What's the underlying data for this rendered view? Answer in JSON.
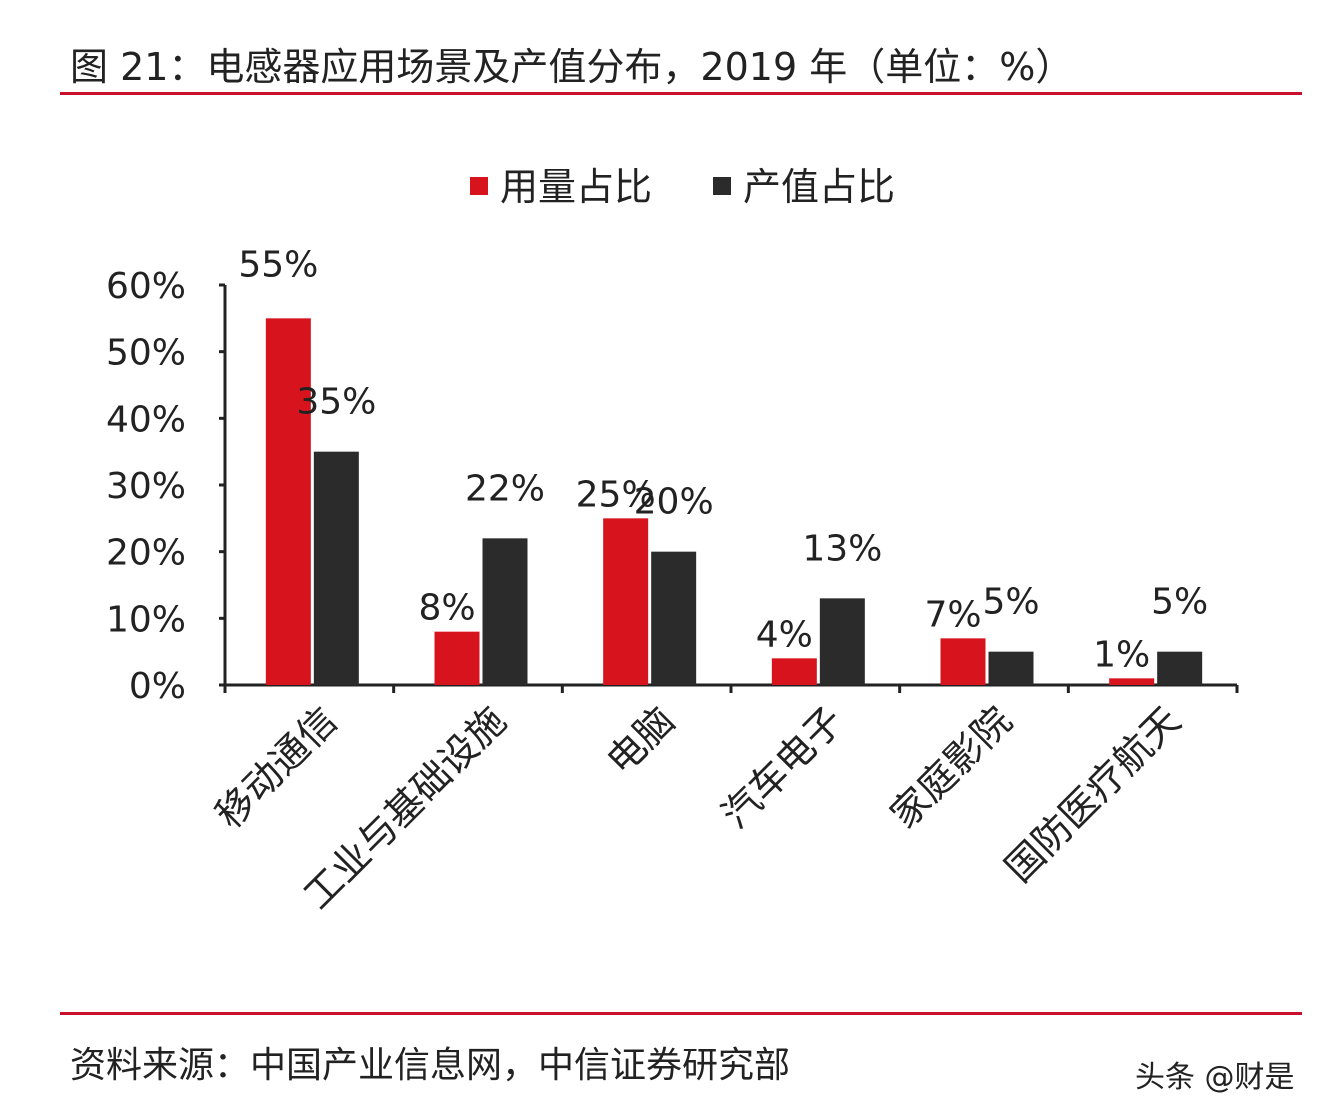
{
  "title": "图 21：电感器应用场景及产值分布，2019 年（单位：%）",
  "source": "资料来源：中国产业信息网，中信证券研究部",
  "watermark": "头条 @财是",
  "chart_data": {
    "type": "bar",
    "title": "",
    "xlabel": "",
    "ylabel": "",
    "ylim": [
      0,
      60
    ],
    "yticks": [
      "0%",
      "10%",
      "20%",
      "30%",
      "40%",
      "50%",
      "60%"
    ],
    "grid": false,
    "legend_position": "top",
    "categories": [
      "移动通信",
      "工业与基础设施",
      "电脑",
      "汽车电子",
      "家庭影院",
      "国防医疗航天"
    ],
    "series": [
      {
        "name": "用量占比",
        "color": "#d7141e",
        "values": [
          55,
          8,
          25,
          4,
          7,
          1
        ],
        "labels": [
          "55%",
          "8%",
          "25%",
          "4%",
          "7%",
          "1%"
        ]
      },
      {
        "name": "产值占比",
        "color": "#2b2b2b",
        "values": [
          35,
          22,
          20,
          13,
          5,
          5
        ],
        "labels": [
          "35%",
          "22%",
          "20%",
          "13%",
          "5%",
          "5%"
        ]
      }
    ]
  }
}
